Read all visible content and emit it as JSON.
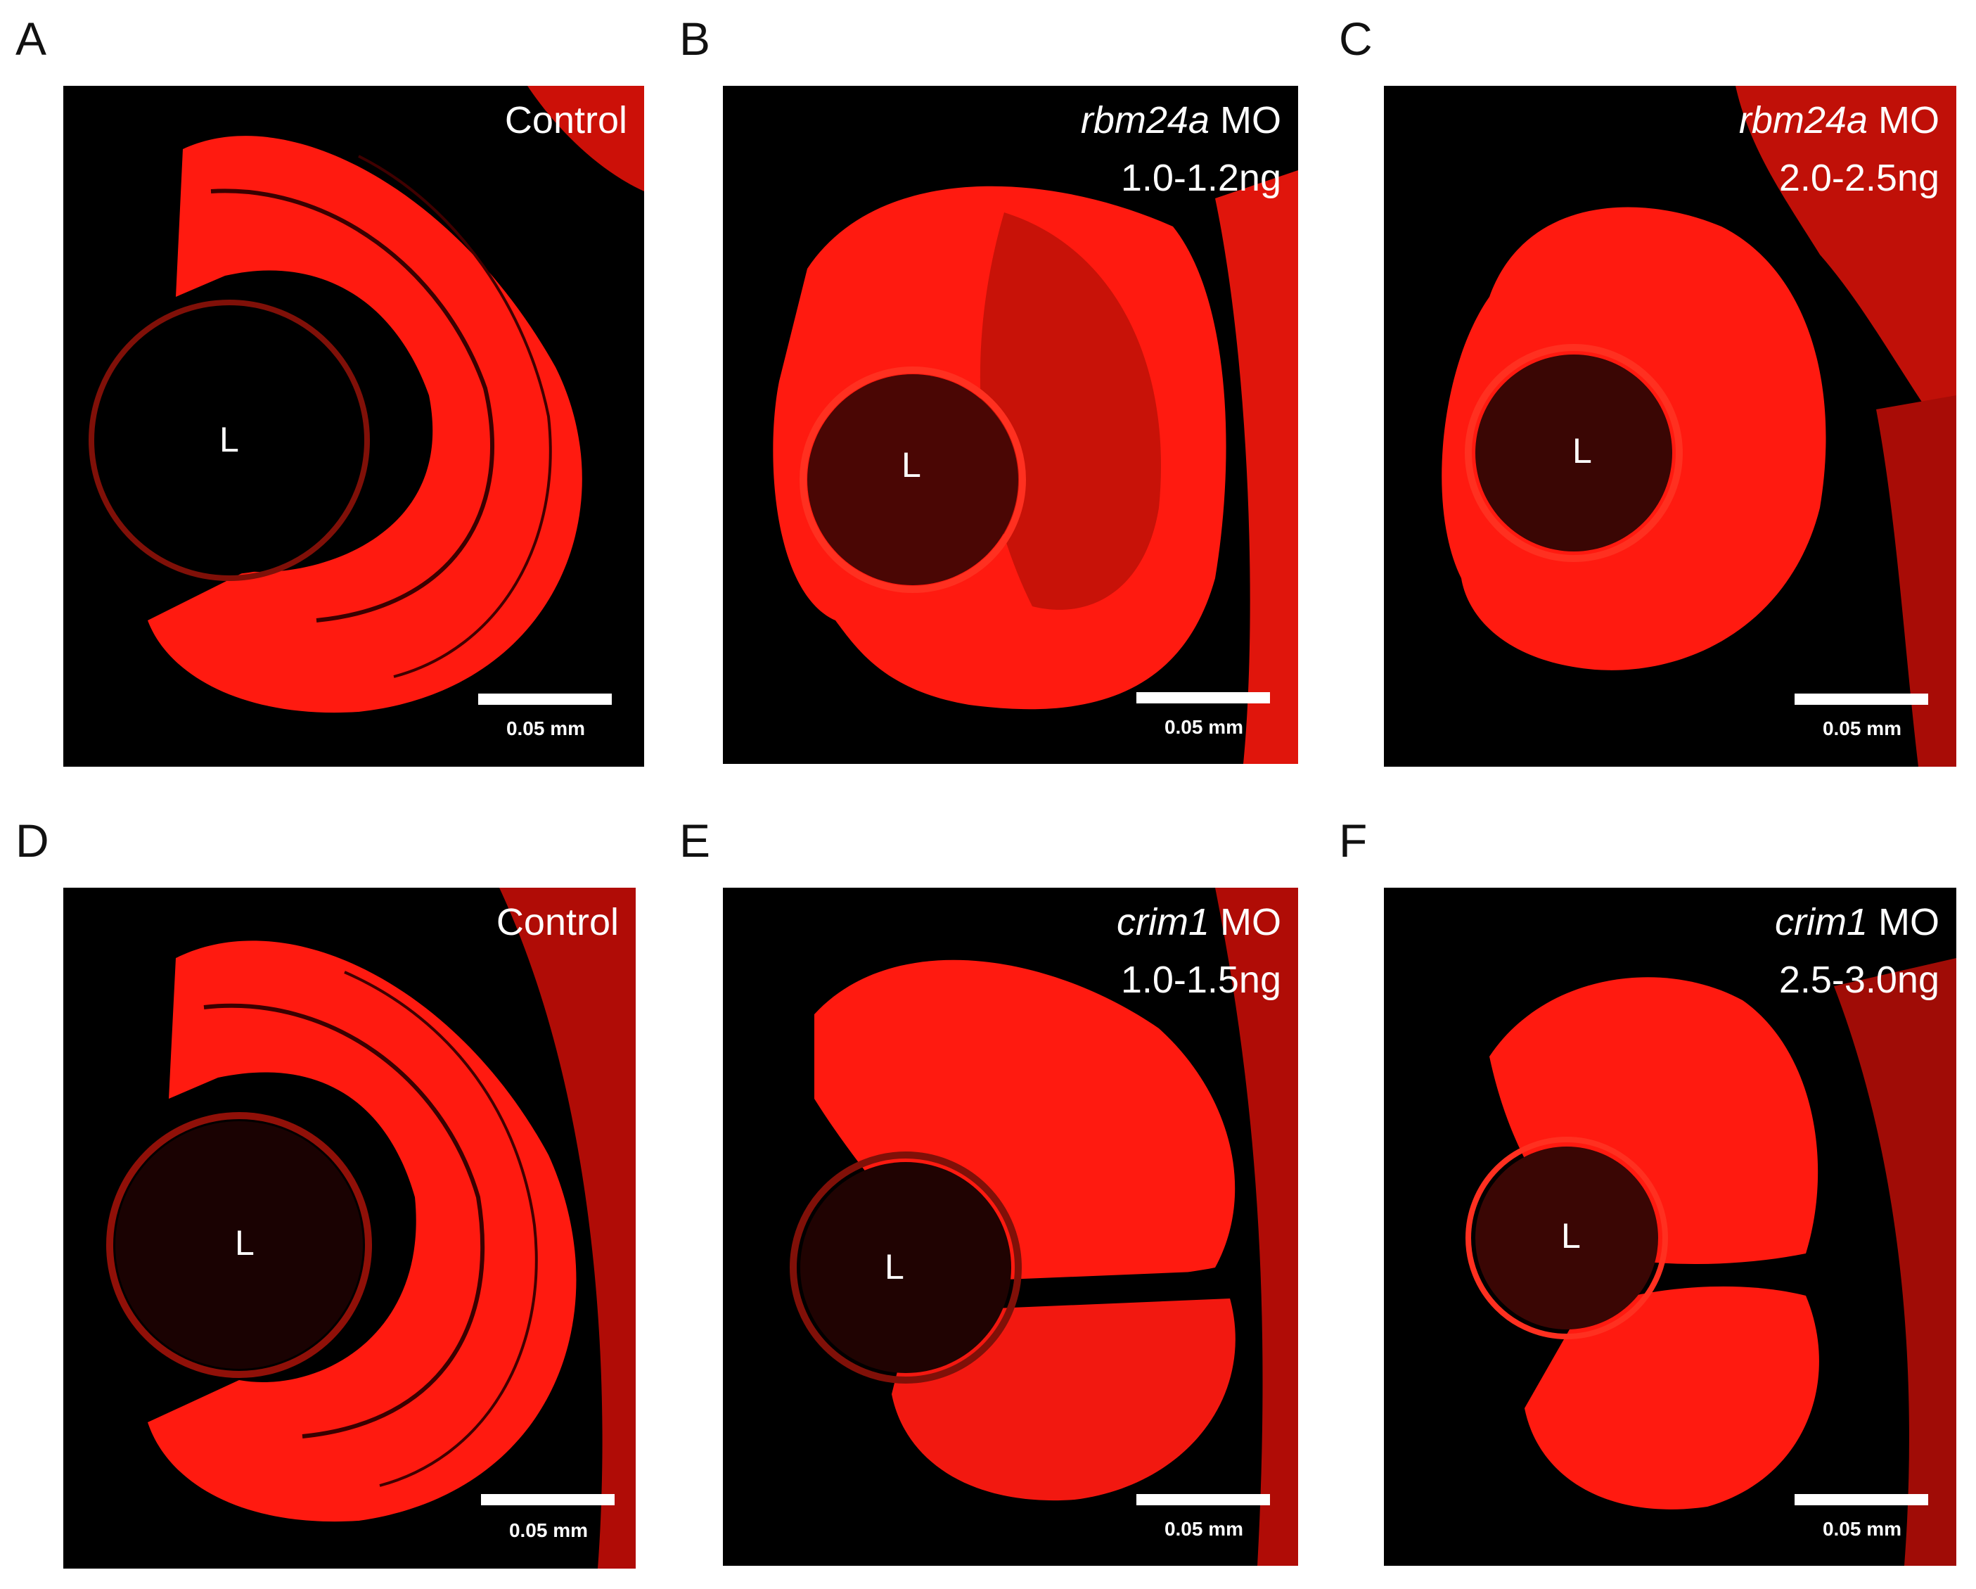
{
  "colors": {
    "background": "#000000",
    "stain": "#ff1a10",
    "text": "#ffffff",
    "letter": "#111111"
  },
  "panels": [
    {
      "letter": "A",
      "condition_gene": "",
      "condition_text": "Control",
      "dose": "",
      "lens": "L",
      "scale": "0.05 mm"
    },
    {
      "letter": "B",
      "condition_gene": "rbm24a",
      "condition_text": " MO",
      "dose": "1.0-1.2ng",
      "lens": "L",
      "scale": "0.05 mm"
    },
    {
      "letter": "C",
      "condition_gene": "rbm24a",
      "condition_text": " MO",
      "dose": "2.0-2.5ng",
      "lens": "L",
      "scale": "0.05 mm"
    },
    {
      "letter": "D",
      "condition_gene": "",
      "condition_text": "Control",
      "dose": "",
      "lens": "L",
      "scale": "0.05 mm"
    },
    {
      "letter": "E",
      "condition_gene": "crim1",
      "condition_text": " MO",
      "dose": "1.0-1.5ng",
      "lens": "L",
      "scale": "0.05 mm"
    },
    {
      "letter": "F",
      "condition_gene": "crim1",
      "condition_text": " MO",
      "dose": "2.5-3.0ng",
      "lens": "L",
      "scale": "0.05 mm"
    }
  ]
}
